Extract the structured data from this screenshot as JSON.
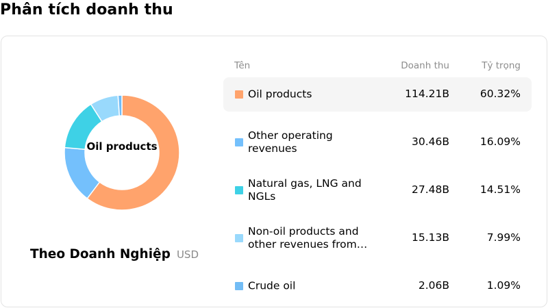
{
  "page": {
    "title": "Phân tích doanh thu"
  },
  "caption": {
    "main": "Theo Doanh Nghiệp",
    "unit": "USD"
  },
  "table": {
    "headers": {
      "name": "Tên",
      "revenue": "Doanh thu",
      "share": "Tỷ trọng"
    }
  },
  "chart_data": {
    "type": "pie",
    "center_label": "Oil products",
    "categories": [
      "Oil products",
      "Other operating revenues",
      "Natural gas, LNG and NGLs",
      "Non-oil products and other revenues from…",
      "Crude oil"
    ],
    "values": [
      114.21,
      30.46,
      27.48,
      15.13,
      2.06
    ],
    "value_labels": [
      "114.21B",
      "30.46B",
      "27.48B",
      "15.13B",
      "2.06B"
    ],
    "shares": [
      60.32,
      16.09,
      14.51,
      7.99,
      1.09
    ],
    "share_labels": [
      "60.32%",
      "16.09%",
      "14.51%",
      "7.99%",
      "1.09%"
    ],
    "colors": [
      "#ffa36c",
      "#74c0fc",
      "#3ed1e6",
      "#99d9fc",
      "#72bcf5"
    ],
    "highlighted_index": 0
  }
}
